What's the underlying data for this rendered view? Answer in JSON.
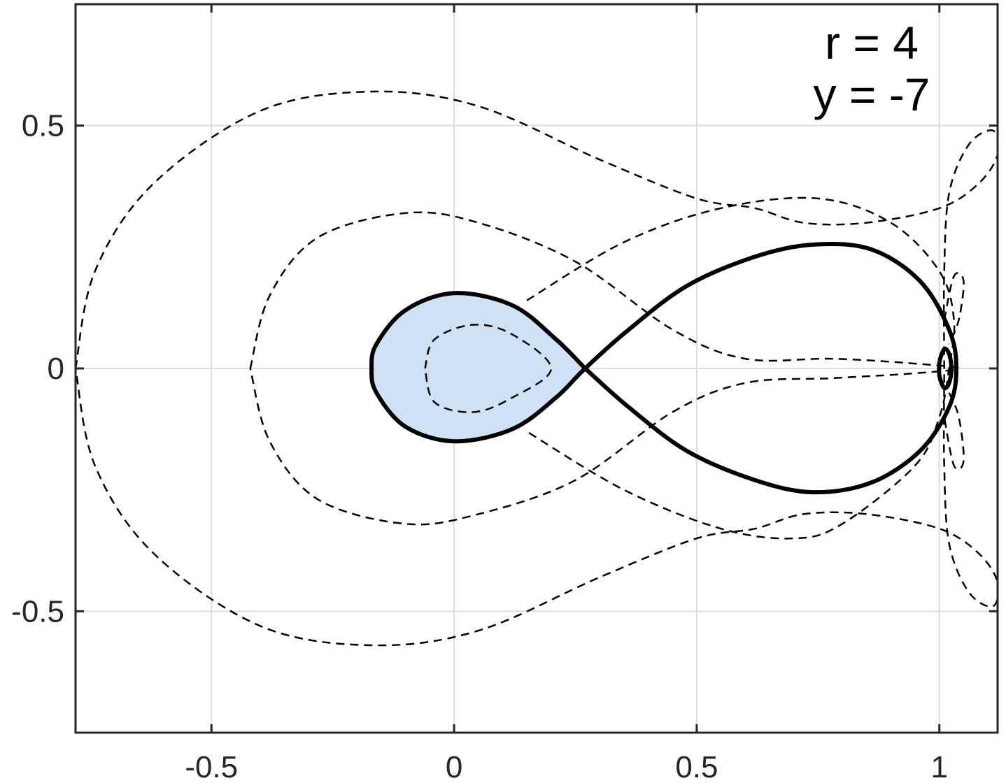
{
  "chart_data": {
    "type": "line",
    "title": "",
    "xlabel": "",
    "ylabel": "",
    "xlim": [
      -0.78,
      1.12
    ],
    "ylim": [
      -0.75,
      0.75
    ],
    "grid": true,
    "x_ticks": [
      -0.5,
      0,
      0.5,
      1
    ],
    "x_tick_labels": [
      "-0.5",
      "0",
      "0.5",
      "1"
    ],
    "y_ticks": [
      0.5,
      0,
      -0.5
    ],
    "y_tick_labels": [
      "0.5",
      "0",
      "-0.5"
    ],
    "annotations": [
      "r = 4",
      "y = -7"
    ],
    "colors": {
      "fill": "#cfe2f5",
      "line": "#000000",
      "grid": "#dcdcdc",
      "axis": "#262626"
    },
    "series": [
      {
        "style": "solid",
        "filled_region": true,
        "points": [
          [
            0.27,
            0.0
          ],
          [
            0.21,
            0.06
          ],
          [
            0.12,
            0.13
          ],
          [
            0.0,
            0.155
          ],
          [
            -0.1,
            0.12
          ],
          [
            -0.16,
            0.05
          ],
          [
            -0.17,
            0.0
          ],
          [
            -0.16,
            -0.05
          ],
          [
            -0.1,
            -0.12
          ],
          [
            0.0,
            -0.15
          ],
          [
            0.12,
            -0.125
          ],
          [
            0.21,
            -0.06
          ],
          [
            0.27,
            0.0
          ],
          [
            0.36,
            0.08
          ],
          [
            0.48,
            0.17
          ],
          [
            0.62,
            0.23
          ],
          [
            0.74,
            0.255
          ],
          [
            0.86,
            0.245
          ],
          [
            0.96,
            0.18
          ],
          [
            1.02,
            0.08
          ],
          [
            1.035,
            0.0
          ],
          [
            1.02,
            -0.08
          ],
          [
            0.96,
            -0.17
          ],
          [
            0.86,
            -0.235
          ],
          [
            0.74,
            -0.255
          ],
          [
            0.62,
            -0.23
          ],
          [
            0.48,
            -0.17
          ],
          [
            0.36,
            -0.08
          ],
          [
            0.27,
            0.0
          ]
        ]
      },
      {
        "style": "solid",
        "points": [
          [
            1.0,
            0.015
          ],
          [
            1.01,
            0.04
          ],
          [
            1.02,
            0.03
          ],
          [
            1.025,
            0.0
          ],
          [
            1.02,
            -0.03
          ],
          [
            1.01,
            -0.04
          ],
          [
            1.0,
            -0.015
          ],
          [
            1.0,
            0.015
          ]
        ]
      },
      {
        "style": "dashed",
        "points": [
          [
            -0.06,
            0.0
          ],
          [
            -0.04,
            0.06
          ],
          [
            0.04,
            0.09
          ],
          [
            0.12,
            0.07
          ],
          [
            0.2,
            0.0
          ],
          [
            0.12,
            -0.06
          ],
          [
            0.04,
            -0.09
          ],
          [
            -0.04,
            -0.07
          ],
          [
            -0.06,
            0.0
          ]
        ]
      },
      {
        "style": "dashed",
        "points": [
          [
            -0.42,
            0.0
          ],
          [
            -0.38,
            0.15
          ],
          [
            -0.28,
            0.27
          ],
          [
            -0.1,
            0.32
          ],
          [
            0.05,
            0.3
          ],
          [
            0.25,
            0.22
          ],
          [
            0.45,
            0.08
          ],
          [
            0.6,
            0.02
          ],
          [
            0.78,
            0.02
          ],
          [
            0.95,
            0.01
          ],
          [
            1.04,
            0.0
          ],
          [
            0.95,
            -0.01
          ],
          [
            0.78,
            -0.02
          ],
          [
            0.6,
            -0.03
          ],
          [
            0.45,
            -0.09
          ],
          [
            0.25,
            -0.23
          ],
          [
            0.05,
            -0.3
          ],
          [
            -0.1,
            -0.32
          ],
          [
            -0.28,
            -0.27
          ],
          [
            -0.38,
            -0.15
          ],
          [
            -0.42,
            0.0
          ]
        ]
      },
      {
        "style": "dashed",
        "points": [
          [
            -0.78,
            0.0
          ],
          [
            -0.74,
            0.2
          ],
          [
            -0.62,
            0.38
          ],
          [
            -0.4,
            0.53
          ],
          [
            -0.17,
            0.57
          ],
          [
            0.05,
            0.54
          ],
          [
            0.3,
            0.43
          ],
          [
            0.5,
            0.35
          ],
          [
            0.62,
            0.33
          ],
          [
            0.72,
            0.3
          ],
          [
            0.85,
            0.3
          ],
          [
            1.0,
            0.33
          ],
          [
            1.08,
            0.38
          ],
          [
            1.12,
            0.44
          ],
          [
            1.11,
            0.49
          ],
          [
            1.06,
            0.46
          ],
          [
            1.02,
            0.36
          ],
          [
            1.01,
            0.2
          ],
          [
            1.01,
            0.0
          ],
          [
            1.01,
            -0.2
          ],
          [
            1.02,
            -0.36
          ],
          [
            1.06,
            -0.46
          ],
          [
            1.11,
            -0.49
          ],
          [
            1.12,
            -0.44
          ],
          [
            1.08,
            -0.38
          ],
          [
            1.0,
            -0.33
          ],
          [
            0.85,
            -0.3
          ],
          [
            0.72,
            -0.3
          ],
          [
            0.62,
            -0.33
          ],
          [
            0.5,
            -0.35
          ],
          [
            0.3,
            -0.43
          ],
          [
            0.05,
            -0.54
          ],
          [
            -0.17,
            -0.57
          ],
          [
            -0.4,
            -0.53
          ],
          [
            -0.62,
            -0.38
          ],
          [
            -0.74,
            -0.2
          ],
          [
            -0.78,
            0.0
          ]
        ]
      },
      {
        "style": "dashed",
        "points": [
          [
            0.15,
            0.14
          ],
          [
            0.35,
            0.26
          ],
          [
            0.55,
            0.33
          ],
          [
            0.75,
            0.35
          ],
          [
            0.9,
            0.3
          ],
          [
            1.0,
            0.2
          ],
          [
            1.03,
            0.1
          ],
          [
            1.02,
            0.0
          ],
          [
            1.0,
            -0.1
          ],
          [
            0.95,
            -0.2
          ],
          [
            0.8,
            -0.32
          ],
          [
            0.7,
            -0.35
          ],
          [
            0.55,
            -0.33
          ],
          [
            0.35,
            -0.25
          ],
          [
            0.15,
            -0.13
          ]
        ]
      },
      {
        "style": "dashed",
        "points": [
          [
            1.01,
            0.1
          ],
          [
            1.03,
            0.19
          ],
          [
            1.05,
            0.18
          ],
          [
            1.04,
            0.1
          ],
          [
            1.02,
            0.05
          ]
        ]
      },
      {
        "style": "dashed",
        "points": [
          [
            1.02,
            -0.05
          ],
          [
            1.04,
            -0.1
          ],
          [
            1.05,
            -0.19
          ],
          [
            1.03,
            -0.2
          ],
          [
            1.01,
            -0.1
          ]
        ]
      }
    ]
  }
}
